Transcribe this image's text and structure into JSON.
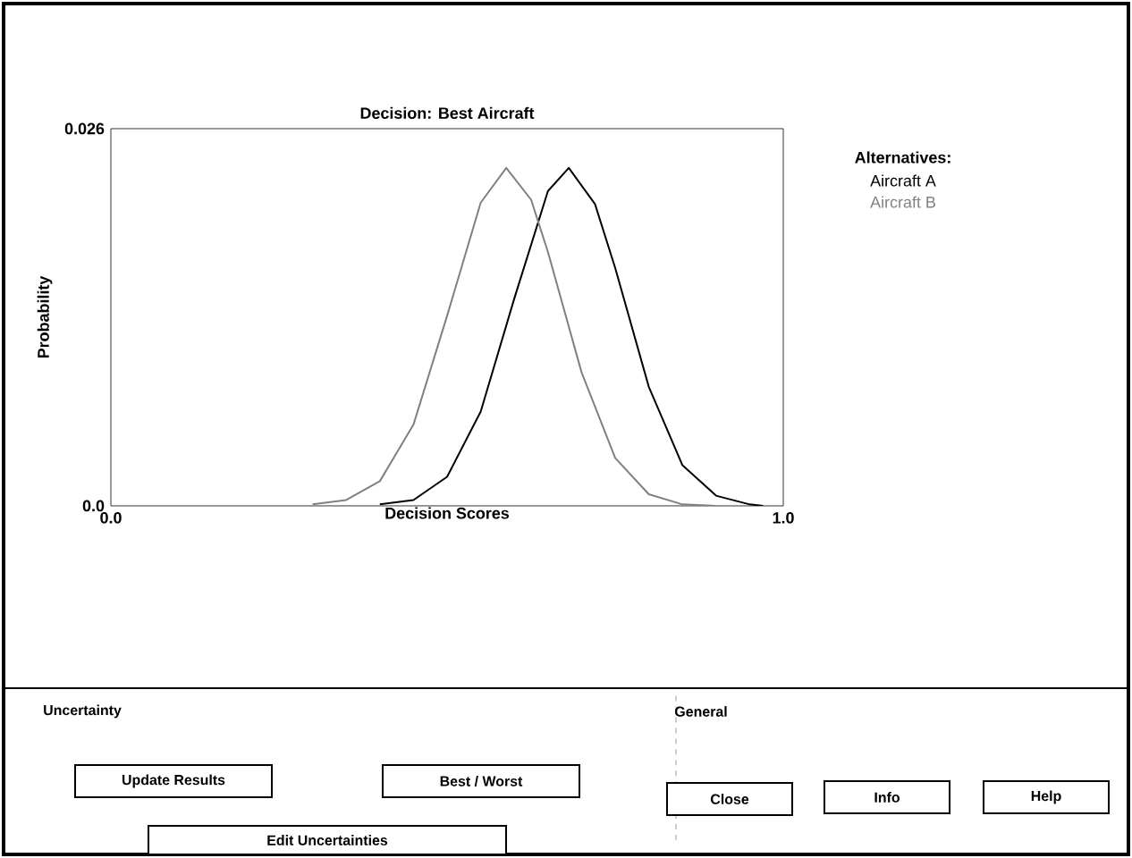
{
  "chart_data": {
    "type": "line",
    "title": "Decision: Best Aircraft",
    "xlabel": "Decision Scores",
    "ylabel": "Probability",
    "legend_title": "Alternatives:",
    "legend": "right",
    "xlim": [
      0,
      1
    ],
    "ylim": [
      0,
      0.026
    ],
    "xticks": [
      {
        "value": 0,
        "label": "0.0"
      },
      {
        "value": 1,
        "label": "1.0"
      }
    ],
    "yticks": [
      {
        "value": 0,
        "label": "0.0"
      },
      0.026
    ],
    "series": [
      {
        "name": "Aircraft A",
        "color": "#000000",
        "x": [
          0.4,
          0.45,
          0.5,
          0.55,
          0.6,
          0.65,
          0.681,
          0.72,
          0.75,
          0.8,
          0.85,
          0.9,
          0.95,
          0.97
        ],
        "values": [
          0.0001,
          0.0004,
          0.002,
          0.0065,
          0.0143,
          0.0217,
          0.0233,
          0.0208,
          0.0164,
          0.0082,
          0.0028,
          0.0007,
          0.0001,
          0
        ]
      },
      {
        "name": "Aircraft B",
        "color": "#808080",
        "x": [
          0.3,
          0.35,
          0.4,
          0.45,
          0.5,
          0.55,
          0.588,
          0.625,
          0.65,
          0.7,
          0.75,
          0.8,
          0.85,
          0.9
        ],
        "values": [
          0.0001,
          0.0004,
          0.0017,
          0.0056,
          0.0131,
          0.0209,
          0.0233,
          0.0211,
          0.0175,
          0.0092,
          0.0033,
          0.0008,
          0.0001,
          0
        ]
      }
    ],
    "annotations": [
      "Uncertainty",
      "Update Results",
      "Best / Worst",
      "Edit Uncertainties",
      "General",
      "Close",
      "Info",
      "Help"
    ]
  }
}
